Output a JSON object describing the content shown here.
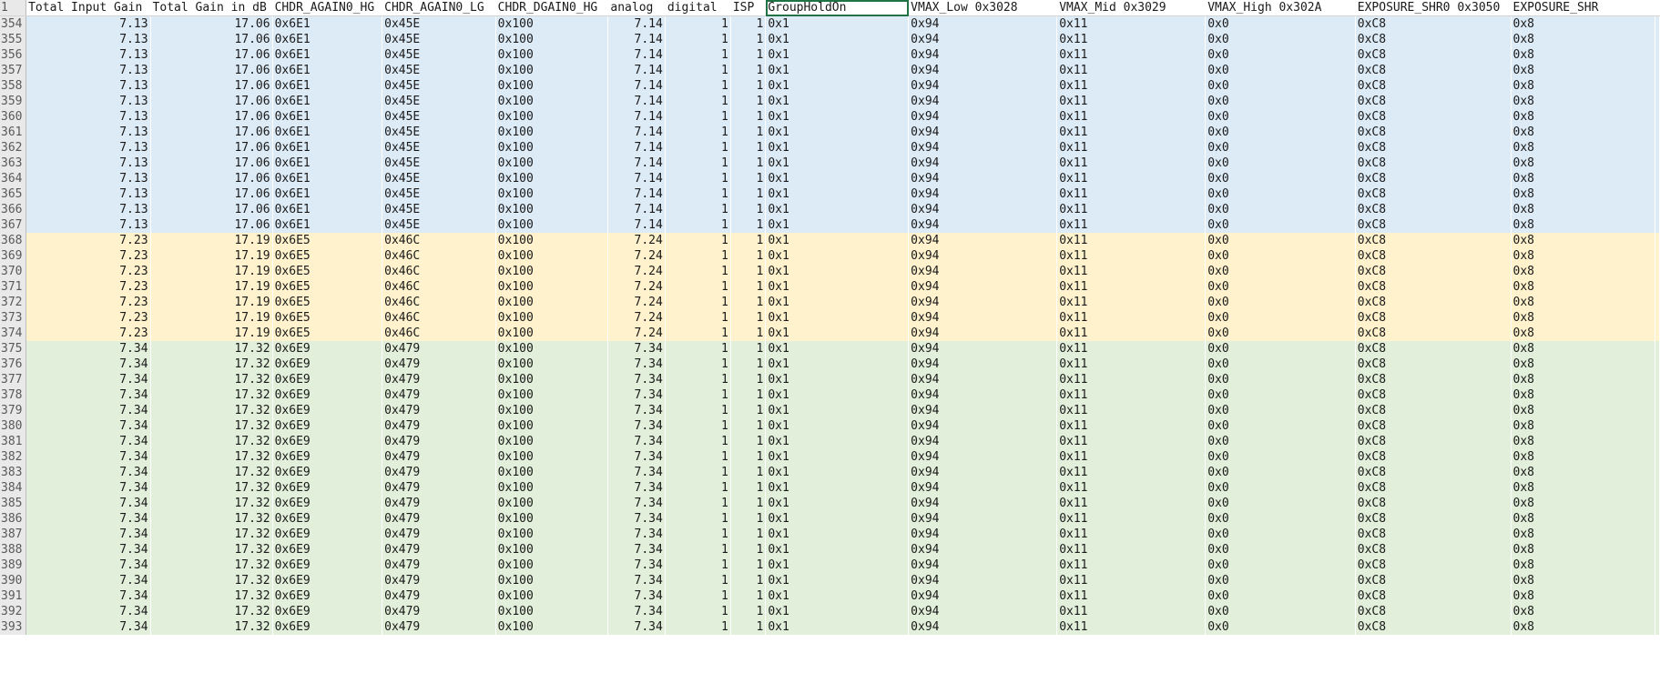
{
  "header": {
    "row_number": "1",
    "columns": [
      {
        "label": "Total Input Gain",
        "align": "txt"
      },
      {
        "label": "Total Gain in dB",
        "align": "txt"
      },
      {
        "label": "CHDR_AGAIN0_HG",
        "align": "txt"
      },
      {
        "label": "CHDR_AGAIN0_LG",
        "align": "txt"
      },
      {
        "label": "CHDR_DGAIN0_HG",
        "align": "txt"
      },
      {
        "label": "analog",
        "align": "txt"
      },
      {
        "label": "digital",
        "align": "txt"
      },
      {
        "label": "ISP",
        "align": "txt"
      },
      {
        "label": "GroupHoldOn",
        "align": "txt",
        "selected": true
      },
      {
        "label": "VMAX_Low 0x3028",
        "align": "txt"
      },
      {
        "label": "VMAX_Mid 0x3029",
        "align": "txt"
      },
      {
        "label": "VMAX_High 0x302A",
        "align": "txt"
      },
      {
        "label": "EXPOSURE_SHR0 0x3050",
        "align": "txt"
      },
      {
        "label": "EXPOSURE_SHR",
        "align": "txt"
      }
    ]
  },
  "colors": {
    "band_blue": "#ddebf7",
    "band_yellow": "#fff2cc",
    "band_green": "#e2efda",
    "selection": "#217346"
  },
  "groups": [
    {
      "band": "blue",
      "rows": [
        "354",
        "355",
        "356",
        "357",
        "358",
        "359",
        "360",
        "361",
        "362",
        "363",
        "364",
        "365",
        "366",
        "367"
      ],
      "values": [
        "7.13",
        "17.06",
        "0x6E1",
        "0x45E",
        "0x100",
        "7.14",
        "1",
        "1",
        "0x1",
        "0x94",
        "0x11",
        "0x0",
        "0xC8",
        "0x8"
      ]
    },
    {
      "band": "yellow",
      "rows": [
        "368",
        "369",
        "370",
        "371",
        "372",
        "373",
        "374"
      ],
      "values": [
        "7.23",
        "17.19",
        "0x6E5",
        "0x46C",
        "0x100",
        "7.24",
        "1",
        "1",
        "0x1",
        "0x94",
        "0x11",
        "0x0",
        "0xC8",
        "0x8"
      ]
    },
    {
      "band": "green",
      "rows": [
        "375",
        "376",
        "377",
        "378",
        "379",
        "380",
        "381",
        "382",
        "383",
        "384",
        "385",
        "386",
        "387",
        "388",
        "389",
        "390",
        "391",
        "392",
        "393"
      ],
      "values": [
        "7.34",
        "17.32",
        "0x6E9",
        "0x479",
        "0x100",
        "7.34",
        "1",
        "1",
        "0x1",
        "0x94",
        "0x11",
        "0x0",
        "0xC8",
        "0x8"
      ]
    }
  ]
}
